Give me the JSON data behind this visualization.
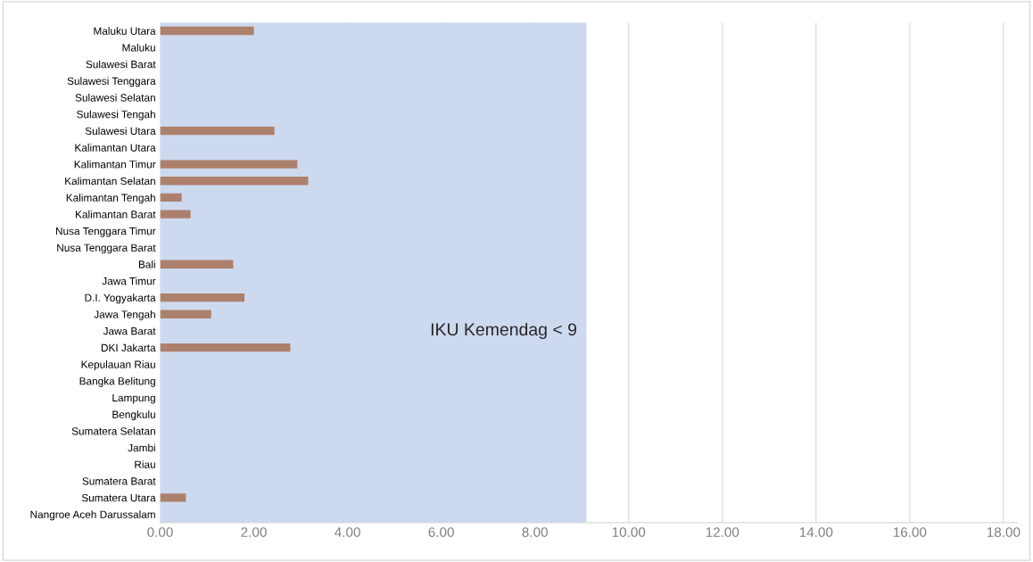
{
  "chart_data": {
    "type": "bar",
    "orientation": "horizontal",
    "categories": [
      "Maluku Utara",
      "Maluku",
      "Sulawesi Barat",
      "Sulawesi Tenggara",
      "Sulawesi Selatan",
      "Sulawesi Tengah",
      "Sulawesi Utara",
      "Kalimantan Utara",
      "Kalimantan Timur",
      "Kalimantan Selatan",
      "Kalimantan Tengah",
      "Kalimantan Barat",
      "Nusa Tenggara Timur",
      "Nusa Tenggara Barat",
      "Bali",
      "Jawa Timur",
      "D.I. Yogyakarta",
      "Jawa Tengah",
      "Jawa Barat",
      "DKI Jakarta",
      "Kepulauan Riau",
      "Bangka Belitung",
      "Lampung",
      "Bengkulu",
      "Sumatera Selatan",
      "Jambi",
      "Riau",
      "Sumatera Barat",
      "Sumatera Utara",
      "Nangroe Aceh Darussalam"
    ],
    "values": [
      2.0,
      null,
      null,
      null,
      null,
      null,
      2.44,
      null,
      2.93,
      3.16,
      0.46,
      0.65,
      null,
      null,
      1.56,
      null,
      1.8,
      1.09,
      null,
      2.78,
      null,
      null,
      null,
      null,
      null,
      null,
      null,
      null,
      0.55,
      null
    ],
    "color": "#ad806c",
    "xlim": [
      0,
      18.3
    ],
    "xticks": [
      {
        "value": 0,
        "label": "0.00"
      },
      {
        "value": 2,
        "label": "2.00"
      },
      {
        "value": 4,
        "label": "4.00"
      },
      {
        "value": 6,
        "label": "6.00"
      },
      {
        "value": 8,
        "label": "8.00"
      },
      {
        "value": 10,
        "label": "10.00"
      },
      {
        "value": 12,
        "label": "12.00"
      },
      {
        "value": 14,
        "label": "14.00"
      },
      {
        "value": 16,
        "label": "16.00"
      },
      {
        "value": 18,
        "label": "18.00"
      }
    ],
    "grid": "x",
    "bands": [
      {
        "axis": "x",
        "from": 0,
        "to": 9.1,
        "label": "IKU Kemendag < 9",
        "color": "#cdd9ef"
      }
    ]
  }
}
